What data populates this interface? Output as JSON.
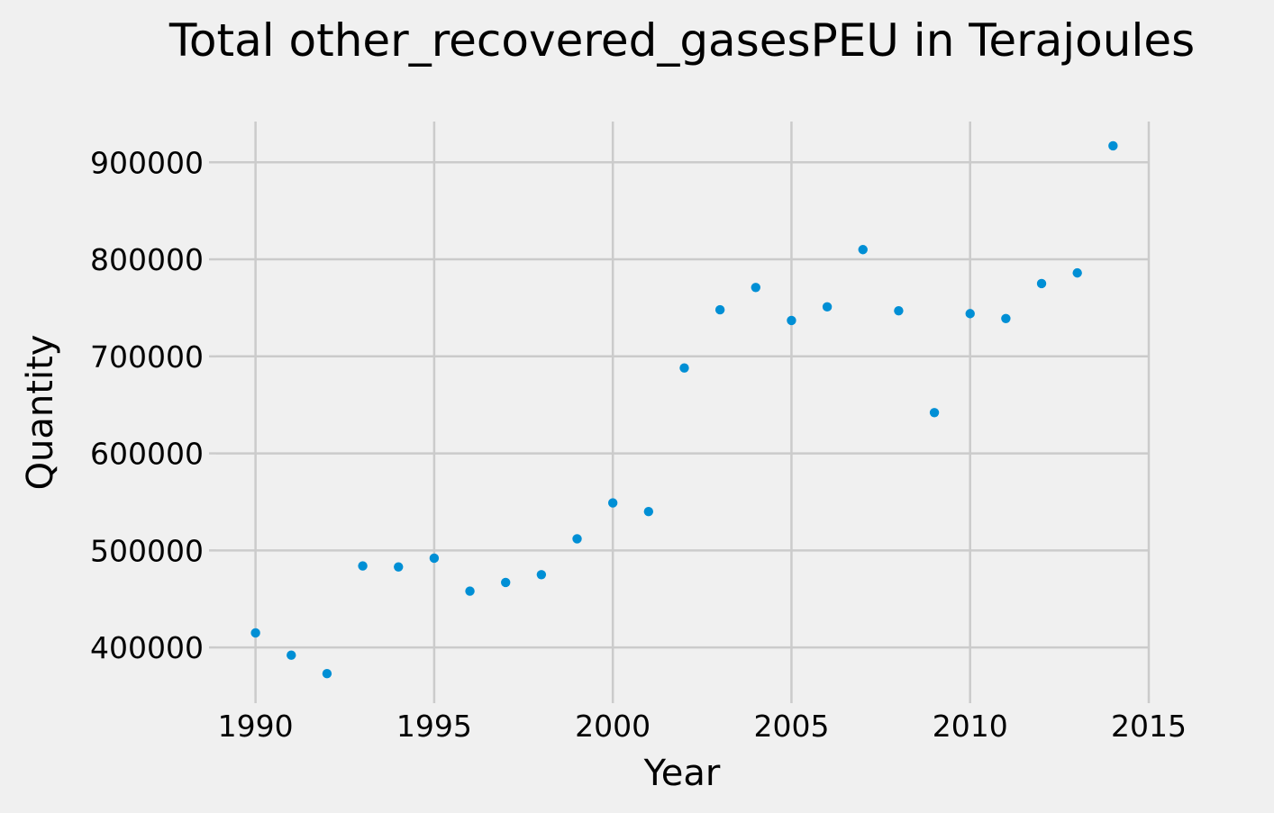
{
  "chart_data": {
    "type": "scatter",
    "title": "Total other_recovered_gasesPEU in Terajoules",
    "xlabel": "Year",
    "ylabel": "Quantity",
    "xlim": [
      1988.9,
      2015
    ],
    "ylim": [
      350000,
      942000
    ],
    "xticks": [
      1990,
      1995,
      2000,
      2005,
      2010,
      2015
    ],
    "yticks": [
      400000,
      500000,
      600000,
      700000,
      800000,
      900000
    ],
    "grid": true,
    "marker_color": "#008fd5",
    "series": [
      {
        "x": [
          1990,
          1991,
          1992,
          1993,
          1994,
          1995,
          1996,
          1997,
          1998,
          1999,
          2000,
          2001,
          2002,
          2003,
          2004,
          2005,
          2006,
          2007,
          2008,
          2009,
          2010,
          2011,
          2012,
          2013,
          2014
        ],
        "y": [
          415000,
          392000,
          373000,
          484000,
          483000,
          492000,
          458000,
          467000,
          475000,
          512000,
          549000,
          540000,
          688000,
          748000,
          771000,
          737000,
          751000,
          810000,
          747000,
          642000,
          744000,
          739000,
          775000,
          786000,
          917000
        ]
      }
    ]
  }
}
